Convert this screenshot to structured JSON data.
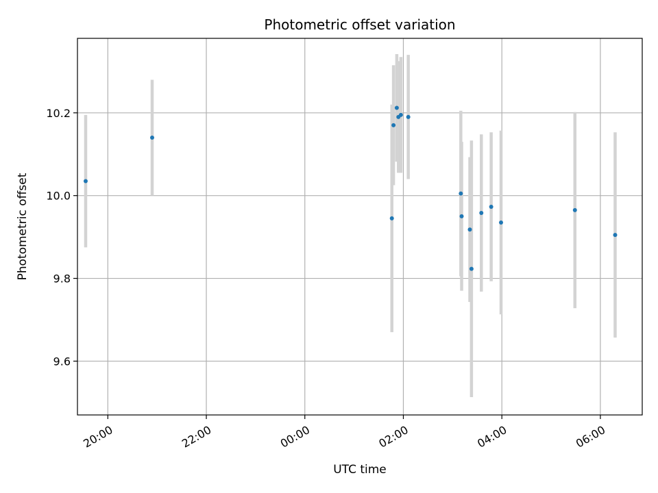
{
  "chart_data": {
    "type": "scatter",
    "title": "Photometric offset variation",
    "xlabel": "UTC time",
    "ylabel": "Photometric offset",
    "grid": true,
    "x_axis": {
      "kind": "time",
      "start": "19:23",
      "end": "06:51",
      "next_day_after": "00:00"
    },
    "ylim": [
      9.47,
      10.38
    ],
    "x_ticks": [
      "20:00",
      "22:00",
      "00:00",
      "02:00",
      "04:00",
      "06:00"
    ],
    "y_ticks": [
      9.6,
      9.8,
      10.0,
      10.2
    ],
    "marker_color": "#1f77b4",
    "errorbar_color": "#d3d3d3",
    "points": [
      {
        "x": "19:33",
        "y": 10.035,
        "err": 0.16
      },
      {
        "x": "20:54",
        "y": 10.14,
        "err": 0.14
      },
      {
        "x": "01:46",
        "y": 9.945,
        "err": 0.275
      },
      {
        "x": "01:48",
        "y": 10.17,
        "err": 0.145
      },
      {
        "x": "01:52",
        "y": 10.212,
        "err": 0.13
      },
      {
        "x": "01:54",
        "y": 10.19,
        "err": 0.135
      },
      {
        "x": "01:57",
        "y": 10.195,
        "err": 0.14
      },
      {
        "x": "02:06",
        "y": 10.19,
        "err": 0.15
      },
      {
        "x": "03:10",
        "y": 10.005,
        "err": 0.2
      },
      {
        "x": "03:11",
        "y": 9.95,
        "err": 0.18
      },
      {
        "x": "03:21",
        "y": 9.918,
        "err": 0.175
      },
      {
        "x": "03:23",
        "y": 9.823,
        "err": 0.31
      },
      {
        "x": "03:35",
        "y": 9.958,
        "err": 0.19
      },
      {
        "x": "03:47",
        "y": 9.973,
        "err": 0.18
      },
      {
        "x": "03:59",
        "y": 9.935,
        "err": 0.222
      },
      {
        "x": "05:29",
        "y": 9.965,
        "err": 0.237
      },
      {
        "x": "06:18",
        "y": 9.905,
        "err": 0.248
      }
    ]
  }
}
